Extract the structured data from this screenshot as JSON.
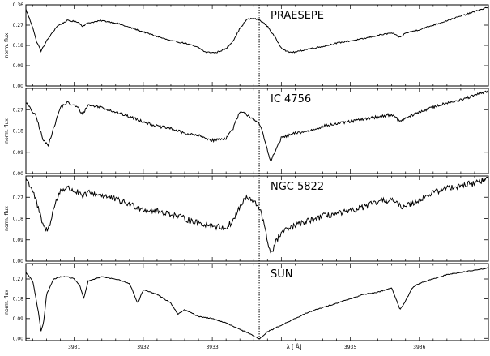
{
  "chart_data": {
    "type": "line",
    "xlabel": "λ [ Å]",
    "x_ticks": [
      "3931",
      "3932",
      "3933",
      "",
      "3935",
      "3936"
    ],
    "x_tick_values": [
      3931,
      3932,
      3933,
      3934,
      3935,
      3936
    ],
    "xlim": [
      3930.3,
      3937.0
    ],
    "vline_x": 3933.68,
    "ylabel": "norm. flux",
    "panels": [
      {
        "name": "PRAESEPE",
        "ylim": [
          0.0,
          0.36
        ],
        "y_ticks": [
          "0.36",
          "0.27",
          "0.18",
          "0.09",
          "0.00"
        ],
        "y_tick_values": [
          0.36,
          0.27,
          0.18,
          0.09,
          0.0
        ],
        "noise": 0.003,
        "x": [
          3930.3,
          3930.4,
          3930.45,
          3930.52,
          3930.6,
          3930.75,
          3930.9,
          3931.05,
          3931.12,
          3931.2,
          3931.4,
          3931.6,
          3931.8,
          3932.0,
          3932.2,
          3932.4,
          3932.6,
          3932.8,
          3932.9,
          3933.05,
          3933.2,
          3933.3,
          3933.4,
          3933.5,
          3933.6,
          3933.7,
          3933.8,
          3933.9,
          3934.0,
          3934.1,
          3934.2,
          3934.4,
          3934.6,
          3934.8,
          3935.0,
          3935.2,
          3935.4,
          3935.6,
          3935.72,
          3935.8,
          3936.0,
          3936.2,
          3936.4,
          3936.6,
          3936.8,
          3937.0
        ],
        "y": [
          0.34,
          0.26,
          0.2,
          0.155,
          0.2,
          0.265,
          0.29,
          0.285,
          0.265,
          0.28,
          0.29,
          0.28,
          0.26,
          0.24,
          0.22,
          0.2,
          0.19,
          0.17,
          0.15,
          0.148,
          0.165,
          0.2,
          0.255,
          0.295,
          0.3,
          0.29,
          0.265,
          0.22,
          0.17,
          0.15,
          0.15,
          0.165,
          0.175,
          0.19,
          0.2,
          0.21,
          0.225,
          0.235,
          0.215,
          0.235,
          0.25,
          0.27,
          0.29,
          0.31,
          0.33,
          0.35
        ]
      },
      {
        "name": "IC 4756",
        "ylim": [
          0.0,
          0.36
        ],
        "y_ticks": [
          "0.27",
          "0.18",
          "0.09",
          "0.00"
        ],
        "y_tick_values": [
          0.27,
          0.18,
          0.09,
          0.0
        ],
        "noise": 0.006,
        "x": [
          3930.3,
          3930.45,
          3930.55,
          3930.62,
          3930.7,
          3930.8,
          3930.9,
          3931.05,
          3931.12,
          3931.2,
          3931.4,
          3931.6,
          3931.8,
          3932.0,
          3932.2,
          3932.4,
          3932.6,
          3932.8,
          3933.0,
          3933.2,
          3933.3,
          3933.4,
          3933.5,
          3933.6,
          3933.7,
          3933.78,
          3933.85,
          3933.92,
          3934.0,
          3934.2,
          3934.4,
          3934.6,
          3934.8,
          3935.0,
          3935.2,
          3935.4,
          3935.6,
          3935.72,
          3935.85,
          3936.0,
          3936.2,
          3936.4,
          3936.6,
          3936.8,
          3937.0
        ],
        "y": [
          0.3,
          0.24,
          0.14,
          0.12,
          0.19,
          0.28,
          0.3,
          0.28,
          0.25,
          0.29,
          0.28,
          0.26,
          0.24,
          0.22,
          0.2,
          0.19,
          0.17,
          0.16,
          0.14,
          0.15,
          0.19,
          0.26,
          0.25,
          0.23,
          0.2,
          0.12,
          0.05,
          0.1,
          0.15,
          0.17,
          0.18,
          0.2,
          0.21,
          0.22,
          0.23,
          0.24,
          0.25,
          0.22,
          0.24,
          0.26,
          0.28,
          0.3,
          0.31,
          0.33,
          0.35
        ]
      },
      {
        "name": "NGC 5822",
        "ylim": [
          0.0,
          0.36
        ],
        "y_ticks": [
          "0.27",
          "0.18",
          "0.09",
          "0.00"
        ],
        "y_tick_values": [
          0.27,
          0.18,
          0.09,
          0.0
        ],
        "noise": 0.013,
        "x": [
          3930.3,
          3930.4,
          3930.5,
          3930.56,
          3930.62,
          3930.7,
          3930.8,
          3930.9,
          3931.05,
          3931.12,
          3931.2,
          3931.4,
          3931.6,
          3931.8,
          3932.0,
          3932.2,
          3932.4,
          3932.6,
          3932.8,
          3933.0,
          3933.2,
          3933.3,
          3933.4,
          3933.5,
          3933.6,
          3933.7,
          3933.78,
          3933.85,
          3933.92,
          3934.0,
          3934.2,
          3934.4,
          3934.6,
          3934.8,
          3935.0,
          3935.2,
          3935.4,
          3935.6,
          3935.72,
          3935.85,
          3936.0,
          3936.2,
          3936.4,
          3936.6,
          3936.8,
          3937.0
        ],
        "y": [
          0.35,
          0.3,
          0.2,
          0.14,
          0.13,
          0.22,
          0.3,
          0.31,
          0.29,
          0.27,
          0.29,
          0.28,
          0.26,
          0.24,
          0.22,
          0.21,
          0.2,
          0.18,
          0.16,
          0.15,
          0.14,
          0.17,
          0.23,
          0.27,
          0.25,
          0.22,
          0.11,
          0.03,
          0.08,
          0.12,
          0.15,
          0.17,
          0.19,
          0.2,
          0.21,
          0.23,
          0.25,
          0.26,
          0.23,
          0.24,
          0.26,
          0.29,
          0.31,
          0.32,
          0.33,
          0.35
        ]
      },
      {
        "name": "SUN",
        "ylim": [
          -0.01,
          0.34
        ],
        "y_ticks": [
          "0.27",
          "0.18",
          "0.09",
          "0.00"
        ],
        "y_tick_values": [
          0.27,
          0.18,
          0.09,
          0.0
        ],
        "noise": 0.002,
        "x": [
          3930.3,
          3930.4,
          3930.48,
          3930.52,
          3930.56,
          3930.6,
          3930.7,
          3930.8,
          3930.9,
          3931.0,
          3931.08,
          3931.14,
          3931.2,
          3931.4,
          3931.6,
          3931.8,
          3931.92,
          3932.0,
          3932.2,
          3932.4,
          3932.5,
          3932.6,
          3932.8,
          3933.0,
          3933.2,
          3933.4,
          3933.55,
          3933.68,
          3933.8,
          3934.0,
          3934.2,
          3934.4,
          3934.6,
          3934.8,
          3935.0,
          3935.2,
          3935.4,
          3935.6,
          3935.72,
          3935.8,
          3935.9,
          3936.0,
          3936.2,
          3936.4,
          3936.6,
          3936.8,
          3937.0
        ],
        "y": [
          0.3,
          0.26,
          0.12,
          0.03,
          0.08,
          0.2,
          0.27,
          0.28,
          0.28,
          0.27,
          0.24,
          0.18,
          0.26,
          0.28,
          0.27,
          0.25,
          0.16,
          0.22,
          0.2,
          0.16,
          0.11,
          0.13,
          0.1,
          0.09,
          0.07,
          0.04,
          0.02,
          -0.002,
          0.03,
          0.06,
          0.09,
          0.12,
          0.14,
          0.16,
          0.18,
          0.2,
          0.21,
          0.23,
          0.13,
          0.17,
          0.23,
          0.25,
          0.27,
          0.29,
          0.3,
          0.31,
          0.32
        ]
      }
    ]
  }
}
